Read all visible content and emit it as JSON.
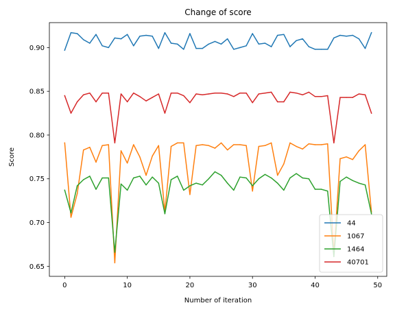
{
  "chart_data": {
    "type": "line",
    "title": "Change of score",
    "xlabel": "Number of iteration",
    "ylabel": "Score",
    "xlim": [
      -2.45,
      51.45
    ],
    "ylim": [
      0.6385,
      0.9285
    ],
    "xticks": [
      0,
      10,
      20,
      30,
      40,
      50
    ],
    "yticks": [
      0.65,
      0.7,
      0.75,
      0.8,
      0.85,
      0.9
    ],
    "ytick_labels": [
      "0.65",
      "0.70",
      "0.75",
      "0.80",
      "0.85",
      "0.90"
    ],
    "grid": false,
    "legend_position": "lower right",
    "x": [
      0,
      1,
      2,
      3,
      4,
      5,
      6,
      7,
      8,
      9,
      10,
      11,
      12,
      13,
      14,
      15,
      16,
      17,
      18,
      19,
      20,
      21,
      22,
      23,
      24,
      25,
      26,
      27,
      28,
      29,
      30,
      31,
      32,
      33,
      34,
      35,
      36,
      37,
      38,
      39,
      40,
      41,
      42,
      43,
      44,
      45,
      46,
      47,
      48,
      49
    ],
    "series": [
      {
        "name": "44",
        "color": "#1f77b4",
        "values": [
          0.897,
          0.917,
          0.916,
          0.909,
          0.905,
          0.915,
          0.902,
          0.9,
          0.911,
          0.91,
          0.915,
          0.902,
          0.913,
          0.914,
          0.913,
          0.899,
          0.917,
          0.905,
          0.904,
          0.898,
          0.916,
          0.899,
          0.899,
          0.904,
          0.907,
          0.904,
          0.91,
          0.898,
          0.9,
          0.902,
          0.916,
          0.904,
          0.905,
          0.901,
          0.914,
          0.915,
          0.901,
          0.908,
          0.91,
          0.901,
          0.898,
          0.898,
          0.898,
          0.911,
          0.914,
          0.913,
          0.914,
          0.91,
          0.899,
          0.917
        ]
      },
      {
        "name": "1067",
        "color": "#ff7f0e",
        "values": [
          0.791,
          0.706,
          0.733,
          0.783,
          0.786,
          0.769,
          0.788,
          0.789,
          0.654,
          0.782,
          0.768,
          0.789,
          0.775,
          0.754,
          0.776,
          0.788,
          0.712,
          0.787,
          0.791,
          0.791,
          0.732,
          0.788,
          0.789,
          0.788,
          0.785,
          0.791,
          0.783,
          0.789,
          0.789,
          0.788,
          0.736,
          0.787,
          0.788,
          0.791,
          0.754,
          0.767,
          0.791,
          0.787,
          0.784,
          0.79,
          0.789,
          0.789,
          0.79,
          0.665,
          0.773,
          0.775,
          0.772,
          0.782,
          0.789,
          0.712
        ]
      },
      {
        "name": "1464",
        "color": "#2ca02c",
        "values": [
          0.737,
          0.711,
          0.742,
          0.749,
          0.753,
          0.738,
          0.751,
          0.751,
          0.666,
          0.744,
          0.737,
          0.751,
          0.753,
          0.743,
          0.752,
          0.745,
          0.71,
          0.749,
          0.753,
          0.737,
          0.742,
          0.745,
          0.743,
          0.75,
          0.758,
          0.754,
          0.745,
          0.737,
          0.752,
          0.751,
          0.742,
          0.75,
          0.755,
          0.751,
          0.745,
          0.737,
          0.751,
          0.756,
          0.751,
          0.75,
          0.738,
          0.738,
          0.736,
          0.661,
          0.747,
          0.752,
          0.748,
          0.745,
          0.743,
          0.71
        ]
      },
      {
        "name": "40701",
        "color": "#d62728",
        "values": [
          0.845,
          0.825,
          0.838,
          0.846,
          0.848,
          0.838,
          0.848,
          0.848,
          0.791,
          0.847,
          0.838,
          0.848,
          0.844,
          0.839,
          0.843,
          0.847,
          0.825,
          0.848,
          0.848,
          0.845,
          0.837,
          0.847,
          0.846,
          0.847,
          0.848,
          0.848,
          0.847,
          0.844,
          0.848,
          0.848,
          0.837,
          0.847,
          0.848,
          0.849,
          0.838,
          0.838,
          0.849,
          0.848,
          0.846,
          0.849,
          0.844,
          0.844,
          0.845,
          0.791,
          0.843,
          0.843,
          0.843,
          0.847,
          0.846,
          0.825
        ]
      }
    ]
  }
}
